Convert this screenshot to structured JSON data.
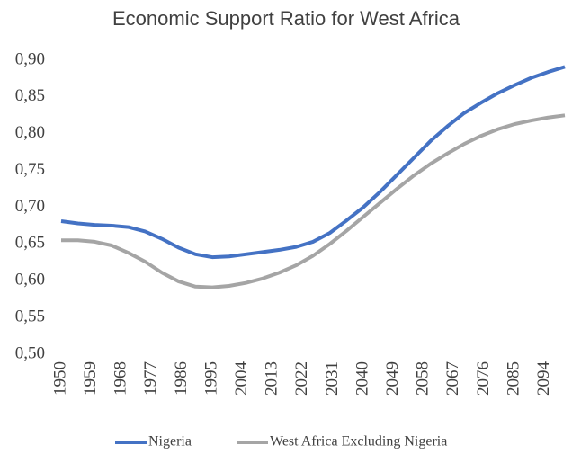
{
  "chart_data": {
    "type": "line",
    "title": "Economic Support Ratio for West Africa",
    "x": [
      1950,
      1955,
      1960,
      1965,
      1970,
      1975,
      1980,
      1985,
      1990,
      1995,
      2000,
      2005,
      2010,
      2015,
      2020,
      2025,
      2030,
      2035,
      2040,
      2045,
      2050,
      2055,
      2060,
      2065,
      2070,
      2075,
      2080,
      2085,
      2090,
      2095,
      2100
    ],
    "series": [
      {
        "name": "Nigeria",
        "color": "#4472c4",
        "values": [
          0.681,
          0.678,
          0.676,
          0.675,
          0.673,
          0.667,
          0.657,
          0.645,
          0.636,
          0.632,
          0.633,
          0.636,
          0.639,
          0.642,
          0.646,
          0.653,
          0.665,
          0.682,
          0.7,
          0.721,
          0.744,
          0.767,
          0.79,
          0.81,
          0.828,
          0.842,
          0.855,
          0.866,
          0.876,
          0.884,
          0.891
        ]
      },
      {
        "name": "West Africa Excluding Nigeria",
        "color": "#a5a5a5",
        "values": [
          0.655,
          0.655,
          0.653,
          0.648,
          0.638,
          0.626,
          0.611,
          0.599,
          0.592,
          0.591,
          0.593,
          0.597,
          0.603,
          0.611,
          0.621,
          0.634,
          0.65,
          0.668,
          0.687,
          0.706,
          0.725,
          0.743,
          0.759,
          0.773,
          0.786,
          0.797,
          0.806,
          0.813,
          0.818,
          0.822,
          0.825
        ]
      }
    ],
    "xlim": [
      1950,
      2100
    ],
    "xticks": [
      1950,
      1959,
      1968,
      1977,
      1986,
      1995,
      2004,
      2013,
      2022,
      2031,
      2040,
      2049,
      2058,
      2067,
      2076,
      2085,
      2094
    ],
    "ylim": [
      0.5,
      0.9
    ],
    "yticks": [
      {
        "value": 0.5,
        "label": "0,50"
      },
      {
        "value": 0.55,
        "label": "0,55"
      },
      {
        "value": 0.6,
        "label": "0,60"
      },
      {
        "value": 0.65,
        "label": "0,65"
      },
      {
        "value": 0.7,
        "label": "0,70"
      },
      {
        "value": 0.75,
        "label": "0,75"
      },
      {
        "value": 0.8,
        "label": "0,80"
      },
      {
        "value": 0.85,
        "label": "0,85"
      },
      {
        "value": 0.9,
        "label": "0,90"
      }
    ],
    "grid": false,
    "legend": "bottom"
  }
}
